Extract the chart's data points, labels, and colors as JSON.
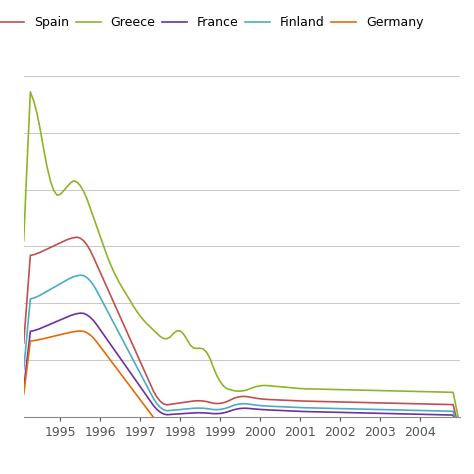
{
  "series": [
    {
      "label": "Spain",
      "color": "#c0504d",
      "data_key": "spain"
    },
    {
      "label": "Greece",
      "color": "#8db52a",
      "data_key": "greece"
    },
    {
      "label": "France",
      "color": "#7030a0",
      "data_key": "france"
    },
    {
      "label": "Finland",
      "color": "#4bacc6",
      "data_key": "finland"
    },
    {
      "label": "Germany",
      "color": "#e36c09",
      "data_key": "germany"
    }
  ],
  "xlim": [
    1994.08,
    2005.0
  ],
  "ylim": [
    3.0,
    22.0
  ],
  "xticks": [
    1995,
    1996,
    1997,
    1998,
    1999,
    2000,
    2001,
    2002,
    2003,
    2004
  ],
  "background_color": "#ffffff",
  "grid_color": "#c8c8c8",
  "legend_fontsize": 9,
  "axis_fontsize": 9
}
